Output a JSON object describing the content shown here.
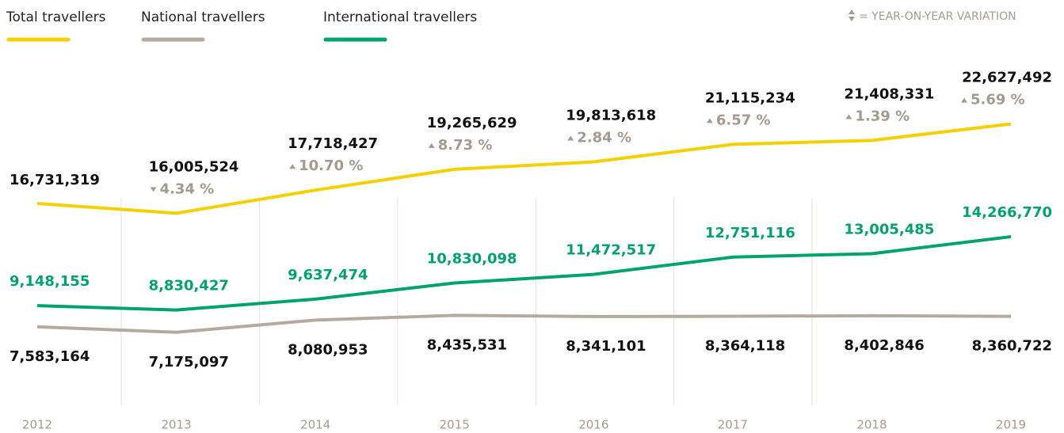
{
  "chart_data": {
    "type": "line",
    "categories": [
      "2012",
      "2013",
      "2014",
      "2015",
      "2016",
      "2017",
      "2018",
      "2019"
    ],
    "ylim": [
      0,
      30000000
    ],
    "series": [
      {
        "name": "Total travellers",
        "color": "#f5d000",
        "values": [
          16731319,
          16005524,
          17718427,
          19265629,
          19813618,
          21115234,
          21408331,
          22627492
        ],
        "value_labels": [
          "16,731,319",
          "16,005,524",
          "17,718,427",
          "19,265,629",
          "19,813,618",
          "21,115,234",
          "21,408,331",
          "22,627,492"
        ]
      },
      {
        "name": "National travellers",
        "color": "#b5aa9e",
        "values": [
          7583164,
          7175097,
          8080953,
          8435531,
          8341101,
          8364118,
          8402846,
          8360722
        ],
        "value_labels": [
          "7,583,164",
          "7,175,097",
          "8,080,953",
          "8,435,531",
          "8,341,101",
          "8,364,118",
          "8,402,846",
          "8,360,722"
        ]
      },
      {
        "name": "International travellers",
        "color": "#00a36c",
        "values": [
          9148155,
          8830427,
          9637474,
          10830098,
          11472517,
          12751116,
          13005485,
          14266770
        ],
        "value_labels": [
          "9,148,155",
          "8,830,427",
          "9,637,474",
          "10,830,098",
          "11,472,517",
          "12,751,116",
          "13,005,485",
          "14,266,770"
        ]
      }
    ],
    "yoy_variation": {
      "legend": "= YEAR-ON-YEAR VARIATION",
      "values": [
        null,
        -4.34,
        10.7,
        8.73,
        2.84,
        6.57,
        1.39,
        5.69
      ],
      "value_labels": [
        null,
        "4.34 %",
        "10.70 %",
        "8.73 %",
        "2.84 %",
        "6.57 %",
        "1.39 %",
        "5.69 %"
      ]
    }
  }
}
